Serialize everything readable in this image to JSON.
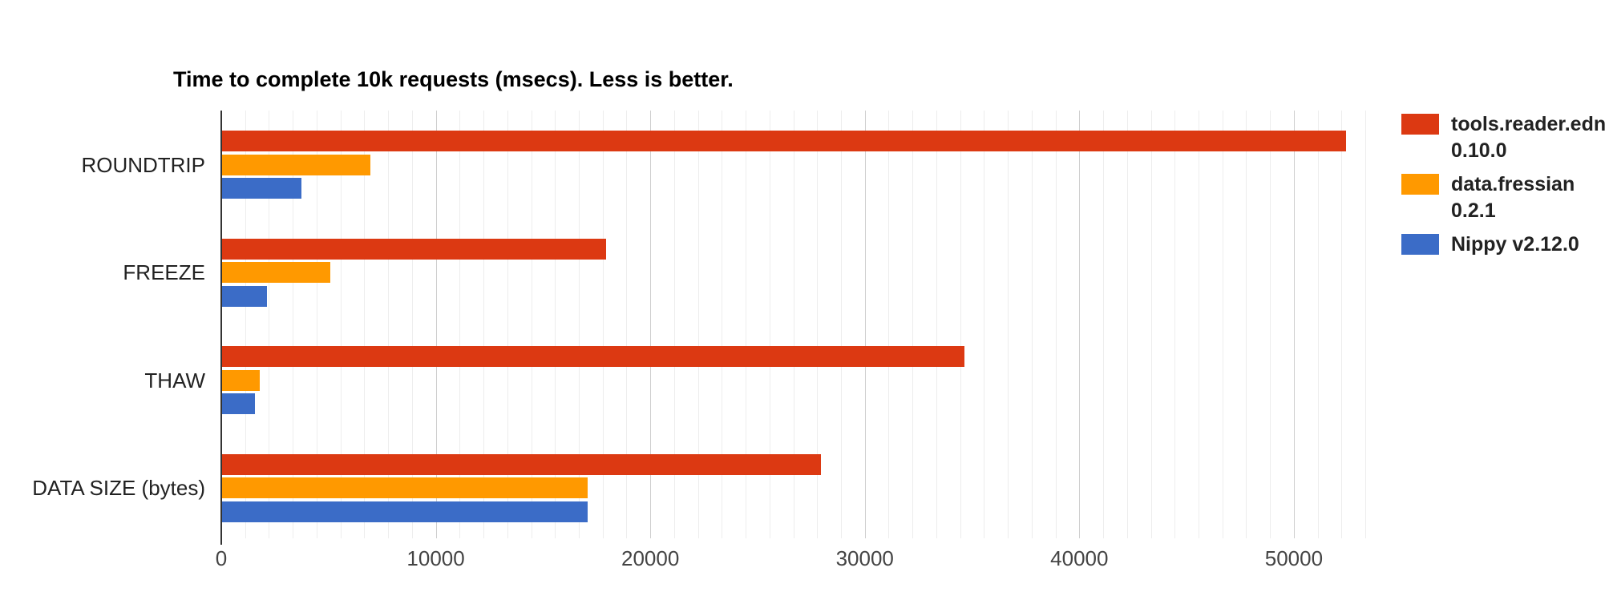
{
  "page": {
    "background_color": "#ffffff"
  },
  "chart_data": {
    "type": "bar",
    "orientation": "horizontal",
    "title": "Time to complete 10k requests (msecs). Less is better.",
    "categories": [
      "ROUNDTRIP",
      "FREEZE",
      "THAW",
      "DATA SIZE (bytes)"
    ],
    "series": [
      {
        "name": "tools.reader.edn 0.10.0",
        "color": "#dc3912",
        "values": [
          52400,
          17900,
          34600,
          27900
        ]
      },
      {
        "name": "data.fressian 0.2.1",
        "color": "#ff9900",
        "values": [
          6930,
          5060,
          1760,
          17040
        ]
      },
      {
        "name": "Nippy v2.12.0",
        "color": "#3b6cc7",
        "values": [
          3700,
          2090,
          1530,
          17040
        ]
      }
    ],
    "x_axis": {
      "tick_labels": [
        "0",
        "10000",
        "20000",
        "30000",
        "40000",
        "50000"
      ],
      "tick_values": [
        0,
        10000,
        20000,
        30000,
        40000,
        50000
      ],
      "max": 53330,
      "major_step": 10000,
      "minor_gridlines_per_major": 9
    },
    "grid": true,
    "legend_position": "right"
  }
}
